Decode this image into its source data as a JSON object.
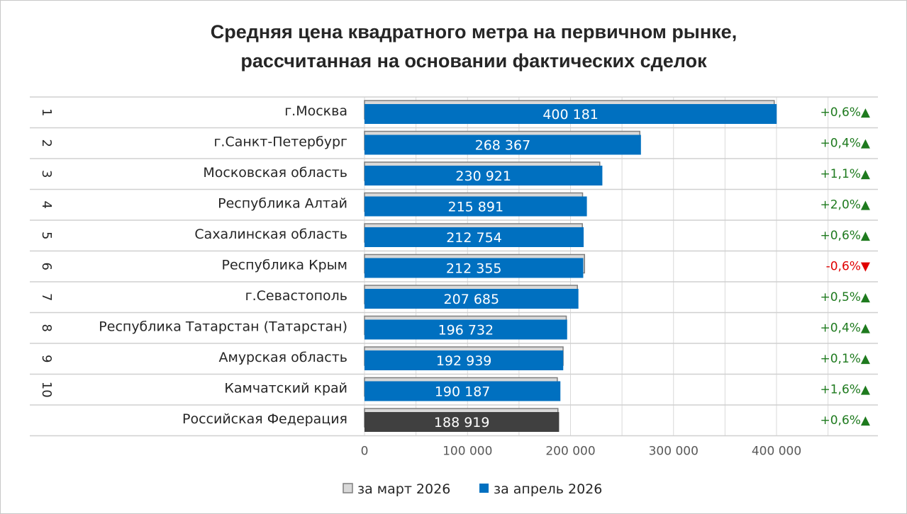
{
  "chart_data": {
    "type": "bar",
    "orientation": "horizontal",
    "title_lines": [
      "Средняя цена квадратного метра на первичном рынке,",
      "рассчитанная на основании фактических сделок"
    ],
    "xlim": [
      0,
      400000
    ],
    "x_ticks": [
      0,
      100000,
      200000,
      300000,
      400000
    ],
    "x_tick_labels": [
      "0",
      "100 000",
      "200 000",
      "300 000",
      "400 000"
    ],
    "grid": true,
    "legend_position": "bottom",
    "rows": [
      {
        "rank": "1",
        "region": "г.Москва",
        "march": 397800,
        "april": 400181,
        "label": "400 181",
        "change": "+0,6%",
        "direction": "up"
      },
      {
        "rank": "2",
        "region": "г.Санкт-Петербург",
        "march": 267300,
        "april": 268367,
        "label": "268 367",
        "change": "+0,4%",
        "direction": "up"
      },
      {
        "rank": "3",
        "region": "Московская область",
        "march": 228400,
        "april": 230921,
        "label": "230 921",
        "change": "+1,1%",
        "direction": "up"
      },
      {
        "rank": "4",
        "region": "Республика Алтай",
        "march": 211700,
        "april": 215891,
        "label": "215 891",
        "change": "+2,0%",
        "direction": "up"
      },
      {
        "rank": "5",
        "region": "Сахалинская область",
        "march": 211500,
        "april": 212754,
        "label": "212 754",
        "change": "+0,6%",
        "direction": "up"
      },
      {
        "rank": "6",
        "region": "Республика Крым",
        "march": 213600,
        "april": 212355,
        "label": "212 355",
        "change": "-0,6%",
        "direction": "down"
      },
      {
        "rank": "7",
        "region": "г.Севастополь",
        "march": 206700,
        "april": 207685,
        "label": "207 685",
        "change": "+0,5%",
        "direction": "up"
      },
      {
        "rank": "8",
        "region": "Республика Татарстан (Татарстан)",
        "march": 195900,
        "april": 196732,
        "label": "196 732",
        "change": "+0,4%",
        "direction": "up"
      },
      {
        "rank": "9",
        "region": "Амурская область",
        "march": 192800,
        "april": 192939,
        "label": "192 939",
        "change": "+0,1%",
        "direction": "up"
      },
      {
        "rank": "10",
        "region": "Камчатский край",
        "march": 187200,
        "april": 190187,
        "label": "190 187",
        "change": "+1,6%",
        "direction": "up"
      },
      {
        "rank": "",
        "region": "Российская Федерация",
        "march": 187800,
        "april": 188919,
        "label": "188 919",
        "change": "+0,6%",
        "direction": "up",
        "highlight": true
      }
    ],
    "series": [
      {
        "name": "за март 2026",
        "key": "march"
      },
      {
        "name": "за апрель 2026",
        "key": "april"
      }
    ],
    "colors": {
      "april": "#0070c0",
      "march": "#d9d9d9",
      "march_border": "#7f7f7f",
      "total": "#404040",
      "up": "#1e7a1e",
      "down": "#e00000",
      "grid": "#d9d9d9"
    }
  }
}
